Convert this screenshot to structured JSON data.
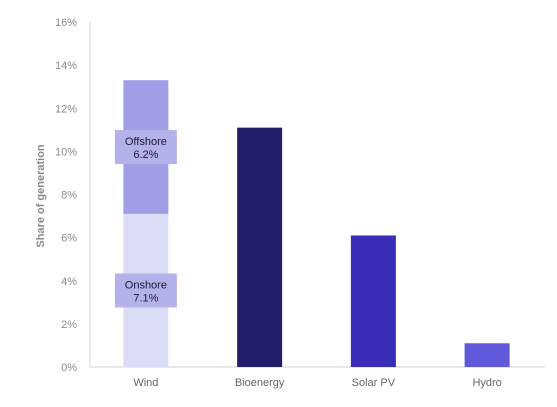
{
  "chart_data": {
    "type": "bar",
    "title": "",
    "xlabel": "",
    "ylabel": "Share of generation",
    "ylim": [
      0,
      16
    ],
    "y_ticks": [
      0,
      2,
      4,
      6,
      8,
      10,
      12,
      14,
      16
    ],
    "y_tick_labels": [
      "0%",
      "2%",
      "4%",
      "6%",
      "8%",
      "10%",
      "12%",
      "14%",
      "16%"
    ],
    "categories": [
      "Wind",
      "Bioenergy",
      "Solar PV",
      "Hydro"
    ],
    "values": [
      13.3,
      11.1,
      6.1,
      1.1
    ],
    "bar_colors": [
      "#a29ee6",
      "#231c6b",
      "#3a2db8",
      "#5f58da"
    ],
    "stacked_segments": {
      "Wind": [
        {
          "name": "Onshore",
          "value": 7.1,
          "label": "Onshore",
          "value_label": "7.1%",
          "color": "#dcdcf7"
        },
        {
          "name": "Offshore",
          "value": 6.2,
          "label": "Offshore",
          "value_label": "6.2%",
          "color": "#a29ee6"
        }
      ]
    },
    "label_box_color": "#b5b2ea",
    "grid": false,
    "legend": "none"
  }
}
